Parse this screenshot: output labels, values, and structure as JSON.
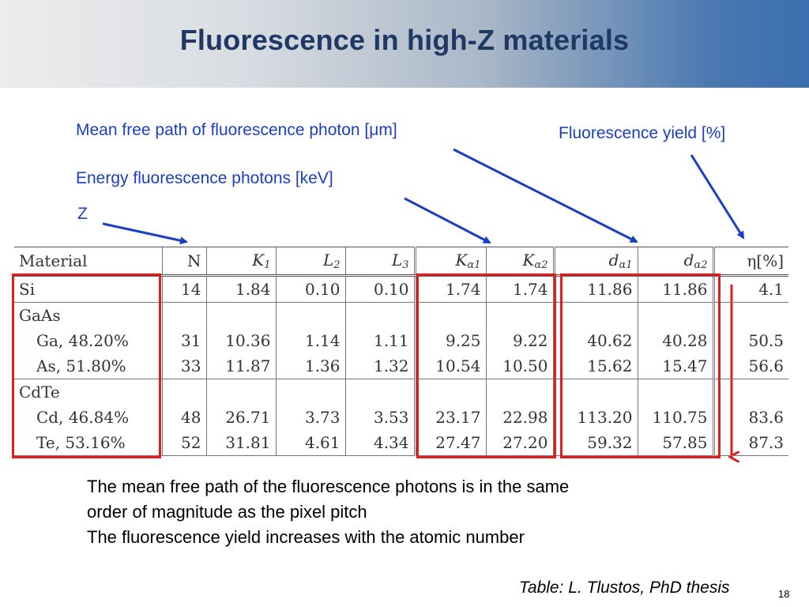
{
  "title": "Fluorescence in high-Z materials",
  "labels": {
    "mean_free_path": "Mean free path of fluorescence photon [μm]",
    "fluorescence_yield": "Fluorescence yield [%]",
    "energy": "Energy fluorescence photons [keV]",
    "z": "Z"
  },
  "table": {
    "headers": [
      "Material",
      "N",
      "K",
      "1",
      "L",
      "2",
      "L",
      "3",
      "K",
      "α1",
      "K",
      "α2",
      "d",
      "α1",
      "d",
      "α2",
      "η[%]"
    ],
    "rows": [
      [
        "Si",
        "14",
        "1.84",
        "0.10",
        "0.10",
        "1.74",
        "1.74",
        "11.86",
        "11.86",
        "4.1"
      ],
      [
        "GaAs",
        "",
        "",
        "",
        "",
        "",
        "",
        "",
        "",
        ""
      ],
      [
        "Ga, 48.20%",
        "31",
        "10.36",
        "1.14",
        "1.11",
        "9.25",
        "9.22",
        "40.62",
        "40.28",
        "50.5"
      ],
      [
        "As, 51.80%",
        "33",
        "11.87",
        "1.36",
        "1.32",
        "10.54",
        "10.50",
        "15.62",
        "15.47",
        "56.6"
      ],
      [
        "CdTe",
        "",
        "",
        "",
        "",
        "",
        "",
        "",
        "",
        ""
      ],
      [
        "Cd, 46.84%",
        "48",
        "26.71",
        "3.73",
        "3.53",
        "23.17",
        "22.98",
        "113.20",
        "110.75",
        "83.6"
      ],
      [
        "Te, 53.16%",
        "52",
        "31.81",
        "4.61",
        "4.34",
        "27.47",
        "27.20",
        "59.32",
        "57.85",
        "87.3"
      ]
    ]
  },
  "notes": [
    "The mean free path of the fluorescence photons is in the same",
    "order of magnitude as the pixel pitch",
    "The fluorescence yield increases with the atomic number"
  ],
  "credit": "Table: L. Tlustos, PhD thesis",
  "slide_number": "18",
  "colors": {
    "title": "#1f3864",
    "labels": "#1a3fc4",
    "highlight": "#e01e1e"
  }
}
